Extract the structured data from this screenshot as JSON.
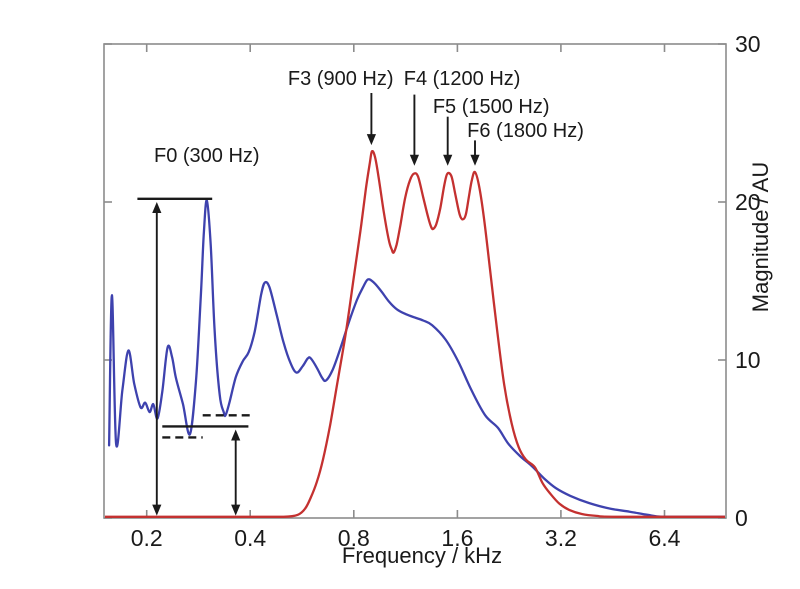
{
  "figure": {
    "background": "#ffffff",
    "axis_color": "#8c8c8c",
    "text_color": "#1a1a1a",
    "annotation_color": "#1a1a1a"
  },
  "chart_data": {
    "type": "line",
    "title": "",
    "xlabel": "Frequency / kHz",
    "ylabel": "Magnitude / AU",
    "x_scale": "log2",
    "x_range_khz": [
      0.1503,
      9.66
    ],
    "y_range": [
      0,
      30
    ],
    "x_ticks": [
      0.2,
      0.4,
      0.8,
      1.6,
      3.2,
      6.4
    ],
    "x_tick_labels": [
      "0.2",
      "0.4",
      "0.8",
      "1.6",
      "3.2",
      "6.4"
    ],
    "y_ticks": [
      0,
      10,
      20,
      30
    ],
    "y_tick_labels": [
      "0",
      "10",
      "20",
      "30"
    ],
    "grid": false,
    "legend": "none",
    "series": [
      {
        "name": "blue-curve",
        "color": "#3e42ae",
        "width": 2.3,
        "points": [
          [
            0.1555,
            4.6
          ],
          [
            0.1585,
            14.1
          ],
          [
            0.163,
            4.7
          ],
          [
            0.17,
            8.1
          ],
          [
            0.177,
            10.6
          ],
          [
            0.184,
            8.5
          ],
          [
            0.192,
            7.0
          ],
          [
            0.198,
            7.3
          ],
          [
            0.204,
            6.7
          ],
          [
            0.209,
            7.2
          ],
          [
            0.215,
            6.3
          ],
          [
            0.222,
            8.0
          ],
          [
            0.23,
            10.8
          ],
          [
            0.237,
            10.2
          ],
          [
            0.243,
            8.9
          ],
          [
            0.255,
            7.2
          ],
          [
            0.267,
            5.3
          ],
          [
            0.278,
            8.6
          ],
          [
            0.287,
            13.8
          ],
          [
            0.293,
            17.9
          ],
          [
            0.299,
            20.1
          ],
          [
            0.307,
            17.3
          ],
          [
            0.315,
            11.9
          ],
          [
            0.326,
            7.8
          ],
          [
            0.335,
            6.7
          ],
          [
            0.339,
            6.5
          ],
          [
            0.348,
            7.3
          ],
          [
            0.363,
            8.9
          ],
          [
            0.38,
            9.9
          ],
          [
            0.396,
            10.5
          ],
          [
            0.412,
            11.8
          ],
          [
            0.43,
            14.1
          ],
          [
            0.441,
            14.9
          ],
          [
            0.455,
            14.6
          ],
          [
            0.477,
            12.9
          ],
          [
            0.5,
            11.1
          ],
          [
            0.524,
            9.8
          ],
          [
            0.545,
            9.2
          ],
          [
            0.568,
            9.6
          ],
          [
            0.588,
            10.1
          ],
          [
            0.6,
            10.1
          ],
          [
            0.625,
            9.5
          ],
          [
            0.646,
            8.9
          ],
          [
            0.664,
            8.7
          ],
          [
            0.695,
            9.4
          ],
          [
            0.733,
            10.8
          ],
          [
            0.774,
            12.4
          ],
          [
            0.817,
            13.8
          ],
          [
            0.851,
            14.6
          ],
          [
            0.879,
            15.1
          ],
          [
            0.915,
            14.9
          ],
          [
            0.958,
            14.4
          ],
          [
            1.012,
            13.7
          ],
          [
            1.068,
            13.2
          ],
          [
            1.134,
            12.9
          ],
          [
            1.199,
            12.7
          ],
          [
            1.273,
            12.5
          ],
          [
            1.352,
            12.2
          ],
          [
            1.478,
            11.3
          ],
          [
            1.61,
            9.9
          ],
          [
            1.757,
            8.1
          ],
          [
            1.928,
            6.5
          ],
          [
            2.1,
            5.7
          ],
          [
            2.25,
            4.7
          ],
          [
            2.44,
            3.9
          ],
          [
            2.63,
            3.3
          ],
          [
            2.86,
            2.5
          ],
          [
            3.09,
            1.9
          ],
          [
            3.41,
            1.4
          ],
          [
            3.86,
            0.95
          ],
          [
            4.43,
            0.6
          ],
          [
            5.07,
            0.4
          ],
          [
            5.71,
            0.2
          ],
          [
            6.32,
            0.07
          ],
          [
            8.0,
            0.05
          ],
          [
            9.6,
            0.05
          ]
        ]
      },
      {
        "name": "red-curve",
        "color": "#c43130",
        "width": 2.3,
        "points": [
          [
            0.1503,
            0.05
          ],
          [
            0.4,
            0.05
          ],
          [
            0.5,
            0.07
          ],
          [
            0.55,
            0.2
          ],
          [
            0.578,
            0.6
          ],
          [
            0.6,
            1.3
          ],
          [
            0.625,
            2.3
          ],
          [
            0.651,
            3.7
          ],
          [
            0.683,
            5.9
          ],
          [
            0.721,
            8.9
          ],
          [
            0.762,
            12.0
          ],
          [
            0.803,
            15.5
          ],
          [
            0.838,
            18.3
          ],
          [
            0.867,
            20.8
          ],
          [
            0.891,
            22.5
          ],
          [
            0.903,
            23.2
          ],
          [
            0.921,
            22.9
          ],
          [
            0.944,
            21.6
          ],
          [
            0.977,
            19.4
          ],
          [
            1.011,
            17.6
          ],
          [
            1.031,
            17.0
          ],
          [
            1.044,
            16.8
          ],
          [
            1.065,
            17.3
          ],
          [
            1.092,
            18.5
          ],
          [
            1.129,
            20.3
          ],
          [
            1.166,
            21.4
          ],
          [
            1.198,
            21.8
          ],
          [
            1.23,
            21.6
          ],
          [
            1.273,
            20.3
          ],
          [
            1.317,
            19.0
          ],
          [
            1.344,
            18.4
          ],
          [
            1.362,
            18.3
          ],
          [
            1.39,
            18.6
          ],
          [
            1.427,
            19.6
          ],
          [
            1.467,
            21.1
          ],
          [
            1.497,
            21.8
          ],
          [
            1.539,
            21.6
          ],
          [
            1.581,
            20.4
          ],
          [
            1.625,
            19.2
          ],
          [
            1.659,
            18.9
          ],
          [
            1.693,
            19.2
          ],
          [
            1.727,
            20.3
          ],
          [
            1.763,
            21.4
          ],
          [
            1.799,
            21.9
          ],
          [
            1.847,
            21.1
          ],
          [
            1.909,
            19.1
          ],
          [
            1.989,
            15.8
          ],
          [
            2.087,
            11.9
          ],
          [
            2.19,
            8.4
          ],
          [
            2.3,
            6.0
          ],
          [
            2.41,
            4.5
          ],
          [
            2.53,
            3.7
          ],
          [
            2.69,
            3.2
          ],
          [
            2.83,
            2.2
          ],
          [
            2.99,
            1.5
          ],
          [
            3.17,
            0.9
          ],
          [
            3.39,
            0.5
          ],
          [
            3.68,
            0.25
          ],
          [
            4.06,
            0.13
          ],
          [
            4.63,
            0.07
          ],
          [
            9.6,
            0.05
          ]
        ]
      }
    ],
    "annotations": {
      "labels": [
        {
          "id": "f0-label",
          "text": "F0 (300 Hz)",
          "x_khz": 0.299,
          "y_au": 22.9
        },
        {
          "id": "f3-label",
          "text": "F3 (900 Hz)",
          "x_khz": 0.733,
          "y_au": 27.8
        },
        {
          "id": "f4-label",
          "text": "F4 (1200 Hz)",
          "x_khz": 1.652,
          "y_au": 27.8
        },
        {
          "id": "f5-label",
          "text": "F5 (1500 Hz)",
          "x_khz": 2.006,
          "y_au": 26.0
        },
        {
          "id": "f6-label",
          "text": "F6 (1800 Hz)",
          "x_khz": 2.525,
          "y_au": 24.5
        }
      ],
      "arrows": [
        {
          "id": "f3-arrow",
          "x_khz": 0.9,
          "from_au": 26.9,
          "to_au": 23.6,
          "double": false
        },
        {
          "id": "f4-arrow",
          "x_khz": 1.2,
          "from_au": 26.8,
          "to_au": 22.3,
          "double": false
        },
        {
          "id": "f5-arrow",
          "x_khz": 1.5,
          "from_au": 25.4,
          "to_au": 22.3,
          "double": false
        },
        {
          "id": "f6-arrow",
          "x_khz": 1.8,
          "from_au": 23.9,
          "to_au": 22.3,
          "double": false
        },
        {
          "id": "f0-peak-arrow",
          "x_khz": 0.214,
          "from_au": 20.0,
          "to_au": 0.15,
          "double": true
        },
        {
          "id": "valley-mean-arrow",
          "x_khz": 0.363,
          "from_au": 5.6,
          "to_au": 0.15,
          "double": true
        }
      ],
      "lines": [
        {
          "id": "f0-peak-line",
          "style": "solid",
          "x1_khz": 0.188,
          "x2_khz": 0.31,
          "y_au": 20.2
        },
        {
          "id": "valley-mean-line",
          "style": "solid",
          "x1_khz": 0.222,
          "x2_khz": 0.395,
          "y_au": 5.8
        },
        {
          "id": "upper-valley-dashed",
          "style": "dashed",
          "x1_khz": 0.291,
          "x2_khz": 0.401,
          "y_au": 6.5
        },
        {
          "id": "lower-valley-dashed",
          "style": "dashed",
          "x1_khz": 0.222,
          "x2_khz": 0.291,
          "y_au": 5.1
        }
      ]
    }
  }
}
